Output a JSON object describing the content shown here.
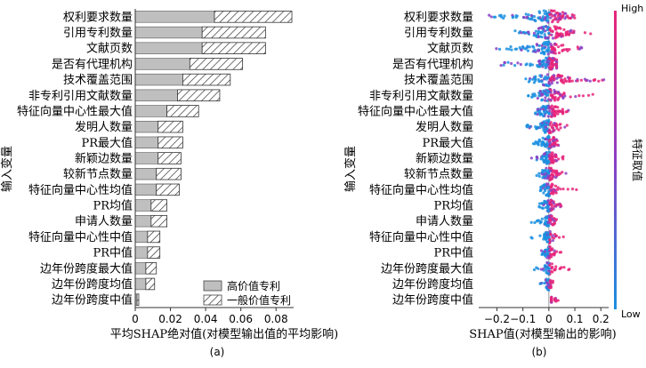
{
  "chart_data": [
    {
      "type": "bar",
      "panel_label": "(a)",
      "xlabel": "平均SHAP绝对值(对模型输出值的平均影响)",
      "ylabel": "输入变量",
      "xlim": [
        0,
        0.09
      ],
      "xticks": [
        "0",
        "0.02",
        "0.04",
        "0.06",
        "0.08"
      ],
      "xtick_values": [
        0,
        0.02,
        0.04,
        0.06,
        0.08
      ],
      "stacked": true,
      "legend_position": "bottom-right",
      "categories": [
        "权利要求数量",
        "引用专利数量",
        "文献页数",
        "是否有代理机构",
        "技术覆盖范围",
        "非专利引用文献数量",
        "特征向量中心性最大值",
        "发明人数量",
        "PR最大值",
        "新颖边数量",
        "较新节点数量",
        "特征向量中心性均值",
        "PR均值",
        "申请人数量",
        "特征向量中心性中值",
        "PR中值",
        "边年份跨度最大值",
        "边年份跨度均值",
        "边年份跨度中值"
      ],
      "series": [
        {
          "name": "高价值专利",
          "values": [
            0.045,
            0.038,
            0.038,
            0.031,
            0.027,
            0.024,
            0.018,
            0.013,
            0.013,
            0.013,
            0.012,
            0.012,
            0.009,
            0.009,
            0.007,
            0.007,
            0.006,
            0.006,
            0.001
          ]
        },
        {
          "name": "一般价值专利",
          "values": [
            0.044,
            0.036,
            0.036,
            0.03,
            0.027,
            0.024,
            0.018,
            0.014,
            0.014,
            0.013,
            0.014,
            0.013,
            0.009,
            0.009,
            0.007,
            0.007,
            0.006,
            0.005,
            0.001
          ]
        }
      ]
    },
    {
      "type": "scatter",
      "panel_label": "(b)",
      "xlabel": "SHAP值(对模型输出的影响)",
      "ylabel": "输入变量",
      "xlim": [
        -0.27,
        0.23
      ],
      "xticks": [
        "−0.2",
        "−0.1",
        "0",
        "0.1",
        "0.2"
      ],
      "xtick_values": [
        -0.2,
        -0.1,
        0,
        0.1,
        0.2
      ],
      "colorbar": {
        "label": "特征取值",
        "high": "High",
        "low": "Low",
        "color_high": "#e8257a",
        "color_low": "#1a8fe0",
        "color_mid": "#8a3fc4"
      },
      "categories": [
        "权利要求数量",
        "引用专利数量",
        "文献页数",
        "是否有代理机构",
        "技术覆盖范围",
        "非专利引用文献数量",
        "特征向量中心性最大值",
        "发明人数量",
        "PR最大值",
        "新颖边数量",
        "较新节点数量",
        "特征向量中心性均值",
        "PR均值",
        "申请人数量",
        "特征向量中心性中值",
        "PR中值",
        "边年份跨度最大值",
        "边年份跨度均值",
        "边年份跨度中值"
      ],
      "distributions": [
        {
          "min": -0.25,
          "max": 0.1,
          "core": 0.05,
          "skew": 0.01
        },
        {
          "min": -0.13,
          "max": 0.18,
          "core": 0.045,
          "skew": 0.01
        },
        {
          "min": -0.21,
          "max": 0.13,
          "core": 0.045,
          "skew": 0.0
        },
        {
          "min": -0.19,
          "max": 0.03,
          "core": 0.03,
          "skew": 0.0
        },
        {
          "min": -0.09,
          "max": 0.22,
          "core": 0.04,
          "skew": 0.01
        },
        {
          "min": -0.08,
          "max": 0.17,
          "core": 0.035,
          "skew": 0.0
        },
        {
          "min": -0.06,
          "max": 0.08,
          "core": 0.03,
          "skew": 0.0
        },
        {
          "min": -0.09,
          "max": 0.07,
          "core": 0.025,
          "skew": 0.0
        },
        {
          "min": -0.06,
          "max": 0.05,
          "core": 0.022,
          "skew": 0.0
        },
        {
          "min": -0.07,
          "max": 0.06,
          "core": 0.02,
          "skew": 0.0
        },
        {
          "min": -0.05,
          "max": 0.07,
          "core": 0.02,
          "skew": 0.0
        },
        {
          "min": -0.04,
          "max": 0.11,
          "core": 0.02,
          "skew": 0.0
        },
        {
          "min": -0.04,
          "max": 0.05,
          "core": 0.015,
          "skew": 0.0
        },
        {
          "min": -0.07,
          "max": 0.04,
          "core": 0.015,
          "skew": 0.0
        },
        {
          "min": -0.07,
          "max": 0.06,
          "core": 0.013,
          "skew": 0.0
        },
        {
          "min": -0.03,
          "max": 0.05,
          "core": 0.012,
          "skew": 0.0
        },
        {
          "min": -0.06,
          "max": 0.08,
          "core": 0.012,
          "skew": 0.0
        },
        {
          "min": -0.05,
          "max": 0.03,
          "core": 0.01,
          "skew": 0.0
        },
        {
          "min": 0.01,
          "max": 0.04,
          "core": 0.005,
          "skew": 0.0
        }
      ]
    }
  ]
}
